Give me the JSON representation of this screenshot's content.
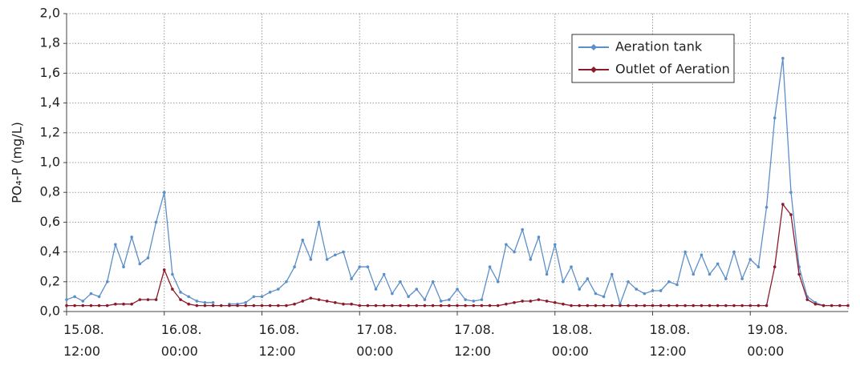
{
  "chart_data": {
    "type": "line",
    "y_label": "PO₄-P (mg/L)",
    "x": [
      "15.08. 12:00",
      "15.08. 13:00",
      "15.08. 14:00",
      "15.08. 15:00",
      "15.08. 16:00",
      "15.08. 17:00",
      "15.08. 18:00",
      "15.08. 19:00",
      "15.08. 20:00",
      "15.08. 21:00",
      "15.08. 22:00",
      "15.08. 23:00",
      "16.08. 00:00",
      "16.08. 01:00",
      "16.08. 02:00",
      "16.08. 03:00",
      "16.08. 04:00",
      "16.08. 05:00",
      "16.08. 06:00",
      "16.08. 07:00",
      "16.08. 08:00",
      "16.08. 09:00",
      "16.08. 10:00",
      "16.08. 11:00",
      "16.08. 12:00",
      "16.08. 13:00",
      "16.08. 14:00",
      "16.08. 15:00",
      "16.08. 16:00",
      "16.08. 17:00",
      "16.08. 18:00",
      "16.08. 19:00",
      "16.08. 20:00",
      "16.08. 21:00",
      "16.08. 22:00",
      "16.08. 23:00",
      "17.08. 00:00",
      "17.08. 01:00",
      "17.08. 02:00",
      "17.08. 03:00",
      "17.08. 04:00",
      "17.08. 05:00",
      "17.08. 06:00",
      "17.08. 07:00",
      "17.08. 08:00",
      "17.08. 09:00",
      "17.08. 10:00",
      "17.08. 11:00",
      "17.08. 12:00",
      "17.08. 13:00",
      "17.08. 14:00",
      "17.08. 15:00",
      "17.08. 16:00",
      "17.08. 17:00",
      "17.08. 18:00",
      "17.08. 19:00",
      "17.08. 20:00",
      "17.08. 21:00",
      "17.08. 22:00",
      "17.08. 23:00",
      "18.08. 00:00",
      "18.08. 01:00",
      "18.08. 02:00",
      "18.08. 03:00",
      "18.08. 04:00",
      "18.08. 05:00",
      "18.08. 06:00",
      "18.08. 07:00",
      "18.08. 08:00",
      "18.08. 09:00",
      "18.08. 10:00",
      "18.08. 11:00",
      "18.08. 12:00",
      "18.08. 13:00",
      "18.08. 14:00",
      "18.08. 15:00",
      "18.08. 16:00",
      "18.08. 17:00",
      "18.08. 18:00",
      "18.08. 19:00",
      "18.08. 20:00",
      "18.08. 21:00",
      "18.08. 22:00",
      "18.08. 23:00",
      "19.08. 00:00",
      "19.08. 01:00",
      "19.08. 02:00",
      "19.08. 03:00",
      "19.08. 04:00",
      "19.08. 05:00",
      "19.08. 06:00",
      "19.08. 07:00",
      "19.08. 08:00",
      "19.08. 09:00",
      "19.08. 10:00",
      "19.08. 11:00",
      "19.08. 12:00"
    ],
    "series": [
      {
        "name": "Aeration tank",
        "color": "#5b8fc9",
        "values": [
          0.08,
          0.1,
          0.07,
          0.12,
          0.1,
          0.2,
          0.45,
          0.3,
          0.5,
          0.32,
          0.36,
          0.6,
          0.8,
          0.25,
          0.13,
          0.1,
          0.07,
          0.06,
          0.06,
          null,
          0.05,
          0.05,
          0.06,
          0.1,
          0.1,
          0.13,
          0.15,
          0.2,
          0.3,
          0.48,
          0.35,
          0.6,
          0.35,
          0.38,
          0.4,
          0.22,
          0.3,
          0.3,
          0.15,
          0.25,
          0.12,
          0.2,
          0.1,
          0.15,
          0.08,
          0.2,
          0.07,
          0.08,
          0.15,
          0.08,
          0.07,
          0.08,
          0.3,
          0.2,
          0.45,
          0.4,
          0.55,
          0.35,
          0.5,
          0.25,
          0.45,
          0.2,
          0.3,
          0.15,
          0.22,
          0.12,
          0.1,
          0.25,
          0.05,
          0.2,
          0.15,
          0.12,
          0.14,
          0.14,
          0.2,
          0.18,
          0.4,
          0.25,
          0.38,
          0.25,
          0.32,
          0.22,
          0.4,
          0.22,
          0.35,
          0.3,
          0.7,
          1.3,
          1.7,
          0.8,
          0.3,
          0.1,
          0.06,
          0.04,
          null,
          null,
          null
        ]
      },
      {
        "name": "Outlet of Aeration",
        "color": "#8b1a2a",
        "values": [
          0.04,
          0.04,
          0.04,
          0.04,
          0.04,
          0.04,
          0.05,
          0.05,
          0.05,
          0.08,
          0.08,
          0.08,
          0.28,
          0.15,
          0.08,
          0.05,
          0.04,
          0.04,
          0.04,
          0.04,
          0.04,
          0.04,
          0.04,
          0.04,
          0.04,
          0.04,
          0.04,
          0.04,
          0.05,
          0.07,
          0.09,
          0.08,
          0.07,
          0.06,
          0.05,
          0.05,
          0.04,
          0.04,
          0.04,
          0.04,
          0.04,
          0.04,
          0.04,
          0.04,
          0.04,
          0.04,
          0.04,
          0.04,
          0.04,
          0.04,
          0.04,
          0.04,
          0.04,
          0.04,
          0.05,
          0.06,
          0.07,
          0.07,
          0.08,
          0.07,
          0.06,
          0.05,
          0.04,
          0.04,
          0.04,
          0.04,
          0.04,
          0.04,
          0.04,
          0.04,
          0.04,
          0.04,
          0.04,
          0.04,
          0.04,
          0.04,
          0.04,
          0.04,
          0.04,
          0.04,
          0.04,
          0.04,
          0.04,
          0.04,
          0.04,
          0.04,
          0.04,
          0.3,
          0.72,
          0.65,
          0.25,
          0.08,
          0.05,
          0.04,
          0.04,
          0.04,
          0.04
        ]
      }
    ],
    "xlim": [
      "15.08. 12:00",
      "19.08. 12:00"
    ],
    "xticks": [
      {
        "value": "15.08. 12:00",
        "label": "15.08.\n12:00"
      },
      {
        "value": "16.08. 00:00",
        "label": "16.08.\n00:00"
      },
      {
        "value": "16.08. 12:00",
        "label": "16.08.\n12:00"
      },
      {
        "value": "17.08. 00:00",
        "label": "17.08.\n00:00"
      },
      {
        "value": "17.08. 12:00",
        "label": "17.08.\n12:00"
      },
      {
        "value": "18.08. 00:00",
        "label": "18.08.\n00:00"
      },
      {
        "value": "18.08. 12:00",
        "label": "18.08.\n12:00"
      },
      {
        "value": "19.08. 00:00",
        "label": "19.08.\n00:00"
      }
    ],
    "ylim": [
      0,
      2
    ],
    "yticks": [
      {
        "value": 0,
        "label": "0,0"
      },
      {
        "value": 0.2,
        "label": "0,2"
      },
      {
        "value": 0.4,
        "label": "0,4"
      },
      {
        "value": 0.6,
        "label": "0,6"
      },
      {
        "value": 0.8,
        "label": "0,8"
      },
      {
        "value": 1.0,
        "label": "1,0"
      },
      {
        "value": 1.2,
        "label": "1,2"
      },
      {
        "value": 1.4,
        "label": "1,4"
      },
      {
        "value": 1.6,
        "label": "1,6"
      },
      {
        "value": 1.8,
        "label": "1,8"
      },
      {
        "value": 2.0,
        "label": "2,0"
      }
    ],
    "grid": true,
    "legend": "upper right"
  }
}
